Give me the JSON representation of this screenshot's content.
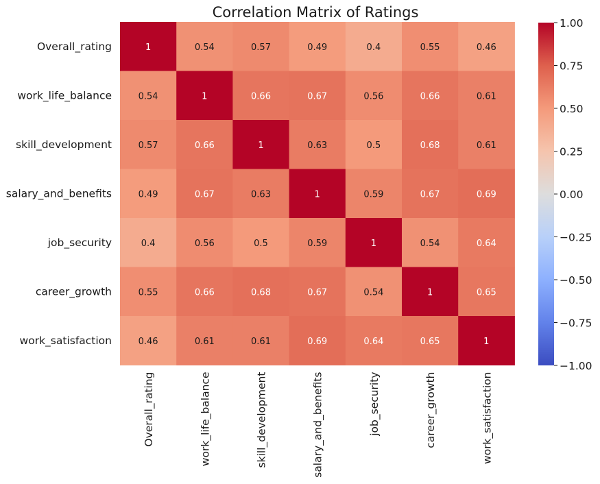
{
  "chart_data": {
    "type": "heatmap",
    "title": "Correlation Matrix of Ratings",
    "row_labels": [
      "Overall_rating",
      "work_life_balance",
      "skill_development",
      "salary_and_benefits",
      "job_security",
      "career_growth",
      "work_satisfaction"
    ],
    "col_labels": [
      "Overall_rating",
      "work_life_balance",
      "skill_development",
      "salary_and_benefits",
      "job_security",
      "career_growth",
      "work_satisfaction"
    ],
    "values": [
      [
        1,
        0.54,
        0.57,
        0.49,
        0.4,
        0.55,
        0.46
      ],
      [
        0.54,
        1,
        0.66,
        0.67,
        0.56,
        0.66,
        0.61
      ],
      [
        0.57,
        0.66,
        1,
        0.63,
        0.5,
        0.68,
        0.61
      ],
      [
        0.49,
        0.67,
        0.63,
        1,
        0.59,
        0.67,
        0.69
      ],
      [
        0.4,
        0.56,
        0.5,
        0.59,
        1,
        0.54,
        0.64
      ],
      [
        0.55,
        0.66,
        0.68,
        0.67,
        0.54,
        1,
        0.65
      ],
      [
        0.46,
        0.61,
        0.61,
        0.69,
        0.64,
        0.65,
        1
      ]
    ],
    "colormap": "coolwarm",
    "vmin": -1,
    "vmax": 1,
    "colorbar_ticks": [
      "1.00",
      "0.75",
      "0.50",
      "0.25",
      "0.00",
      "−0.25",
      "−0.50",
      "−0.75",
      "−1.00"
    ],
    "colorbar_tick_values": [
      1,
      0.75,
      0.5,
      0.25,
      0,
      -0.25,
      -0.5,
      -0.75,
      -1
    ],
    "colors": {
      "low": "#3b4cc0",
      "mid": "#dddddd",
      "high": "#b40426"
    }
  }
}
